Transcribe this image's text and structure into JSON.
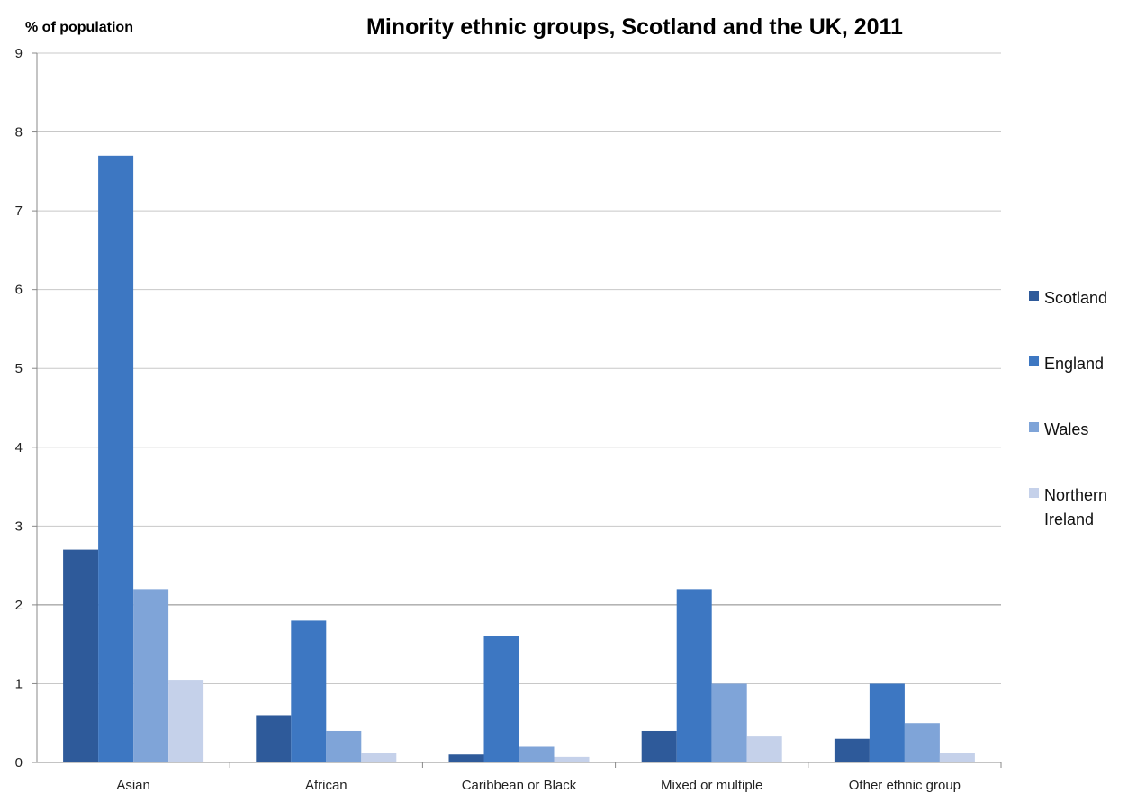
{
  "chart_data": {
    "type": "bar",
    "title": "Minority ethnic groups, Scotland and the UK, 2011",
    "ylabel": "% of population",
    "xlabel": "",
    "ylim": [
      0,
      9
    ],
    "yticks": [
      "0",
      "1",
      "2",
      "3",
      "4",
      "5",
      "6",
      "7",
      "8",
      "9"
    ],
    "grid": true,
    "legend_position": "right",
    "categories": [
      "Asian",
      "African",
      "Caribbean or Black",
      "Mixed or multiple",
      "Other ethnic group"
    ],
    "series": [
      {
        "name": "Scotland",
        "legend_lines": [
          "Scotland"
        ],
        "color": "#2E5A9A",
        "values": [
          2.7,
          0.6,
          0.1,
          0.4,
          0.3
        ]
      },
      {
        "name": "England",
        "legend_lines": [
          "England"
        ],
        "color": "#3D77C2",
        "values": [
          7.7,
          1.8,
          1.6,
          2.2,
          1.0
        ]
      },
      {
        "name": "Wales",
        "legend_lines": [
          "Wales"
        ],
        "color": "#7FA4D8",
        "values": [
          2.2,
          0.4,
          0.2,
          1.0,
          0.5
        ]
      },
      {
        "name": "Northern Ireland",
        "legend_lines": [
          "Northern",
          "Ireland"
        ],
        "color": "#C5D1EA",
        "values": [
          1.05,
          0.12,
          0.07,
          0.33,
          0.12
        ]
      }
    ]
  }
}
